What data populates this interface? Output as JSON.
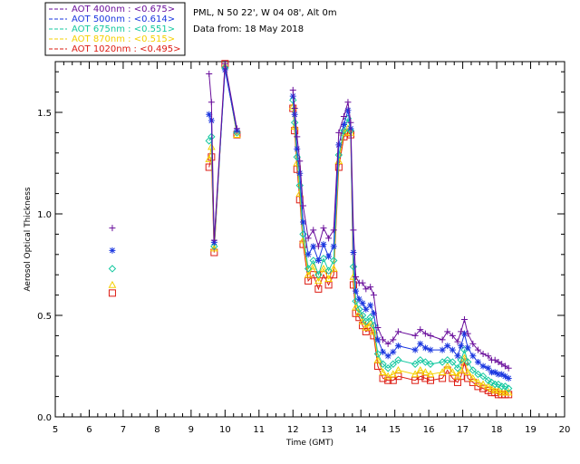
{
  "info": {
    "station": "PML, N 50 22', W 04 08', Alt 0m",
    "date": "Data from: 18 May 2018"
  },
  "chart_data": {
    "type": "line",
    "xlabel": "Time (GMT)",
    "ylabel": "Aerosol Optical Thickness",
    "xlim": [
      5,
      20
    ],
    "ylim": [
      0,
      1.75
    ],
    "xticks": [
      "5",
      "6",
      "7",
      "8",
      "9",
      "10",
      "11",
      "12",
      "13",
      "14",
      "15",
      "16",
      "17",
      "18",
      "19",
      "20"
    ],
    "yticks": [
      "0.0",
      "0.5",
      "1.0",
      "1.5"
    ],
    "legend_position": "top-left (outside plot)",
    "x": [
      6.68,
      9.53,
      9.6,
      9.68,
      10.0,
      10.35,
      12.0,
      12.05,
      12.12,
      12.2,
      12.3,
      12.45,
      12.6,
      12.75,
      12.9,
      13.05,
      13.2,
      13.35,
      13.5,
      13.62,
      13.7,
      13.78,
      13.85,
      13.95,
      14.05,
      14.15,
      14.28,
      14.38,
      14.5,
      14.65,
      14.8,
      14.95,
      15.1,
      15.6,
      15.75,
      15.9,
      16.05,
      16.4,
      16.55,
      16.7,
      16.85,
      16.95,
      17.05,
      17.15,
      17.3,
      17.45,
      17.6,
      17.75,
      17.85,
      17.95,
      18.05,
      18.15,
      18.25,
      18.35
    ],
    "series": [
      {
        "name": "AOT  400nm : <0.675>",
        "color": "#6a0f9c",
        "marker": "plus",
        "values": [
          0.93,
          1.69,
          1.55,
          0.87,
          1.74,
          1.42,
          1.61,
          1.52,
          1.38,
          1.26,
          1.04,
          0.88,
          0.92,
          0.84,
          0.93,
          0.88,
          0.92,
          1.4,
          1.48,
          1.55,
          1.45,
          0.92,
          0.69,
          0.66,
          0.66,
          0.63,
          0.64,
          0.6,
          0.44,
          0.38,
          0.36,
          0.38,
          0.42,
          0.4,
          0.43,
          0.41,
          0.4,
          0.38,
          0.42,
          0.4,
          0.37,
          0.42,
          0.48,
          0.41,
          0.36,
          0.33,
          0.31,
          0.3,
          0.28,
          0.28,
          0.27,
          0.26,
          0.25,
          0.24
        ]
      },
      {
        "name": "AOT  500nm : <0.614>",
        "color": "#1a36e0",
        "marker": "star",
        "values": [
          0.82,
          1.49,
          1.46,
          0.86,
          1.71,
          1.41,
          1.58,
          1.49,
          1.32,
          1.2,
          0.96,
          0.8,
          0.84,
          0.77,
          0.85,
          0.79,
          0.84,
          1.34,
          1.44,
          1.51,
          1.42,
          0.81,
          0.62,
          0.58,
          0.56,
          0.53,
          0.55,
          0.51,
          0.38,
          0.32,
          0.3,
          0.32,
          0.35,
          0.33,
          0.36,
          0.34,
          0.33,
          0.33,
          0.35,
          0.33,
          0.3,
          0.35,
          0.41,
          0.34,
          0.3,
          0.27,
          0.25,
          0.24,
          0.22,
          0.22,
          0.21,
          0.21,
          0.2,
          0.19
        ]
      },
      {
        "name": "AOT  675nm : <0.551>",
        "color": "#14c8a0",
        "marker": "diamond",
        "values": [
          0.73,
          1.36,
          1.38,
          0.84,
          1.72,
          1.4,
          1.56,
          1.45,
          1.28,
          1.14,
          0.9,
          0.73,
          0.77,
          0.7,
          0.78,
          0.72,
          0.77,
          1.29,
          1.41,
          1.47,
          1.41,
          0.74,
          0.57,
          0.53,
          0.5,
          0.47,
          0.49,
          0.45,
          0.31,
          0.26,
          0.24,
          0.26,
          0.28,
          0.26,
          0.28,
          0.27,
          0.26,
          0.27,
          0.28,
          0.27,
          0.24,
          0.28,
          0.33,
          0.27,
          0.23,
          0.21,
          0.2,
          0.18,
          0.17,
          0.16,
          0.16,
          0.15,
          0.15,
          0.14
        ]
      },
      {
        "name": "AOT  870nm : <0.515>",
        "color": "#f5d000",
        "marker": "triangle",
        "values": [
          0.65,
          1.27,
          1.33,
          0.83,
          1.73,
          1.39,
          1.53,
          1.43,
          1.25,
          1.1,
          0.87,
          0.7,
          0.74,
          0.67,
          0.73,
          0.68,
          0.73,
          1.26,
          1.4,
          1.42,
          1.4,
          0.69,
          0.54,
          0.51,
          0.47,
          0.44,
          0.46,
          0.42,
          0.28,
          0.22,
          0.2,
          0.21,
          0.23,
          0.21,
          0.23,
          0.22,
          0.21,
          0.22,
          0.25,
          0.22,
          0.2,
          0.23,
          0.29,
          0.22,
          0.19,
          0.17,
          0.16,
          0.15,
          0.14,
          0.13,
          0.13,
          0.12,
          0.12,
          0.12
        ]
      },
      {
        "name": "AOT 1020nm : <0.495>",
        "color": "#dd1b12",
        "marker": "square",
        "values": [
          0.61,
          1.23,
          1.28,
          0.81,
          1.74,
          1.39,
          1.52,
          1.41,
          1.22,
          1.07,
          0.85,
          0.67,
          0.7,
          0.63,
          0.7,
          0.65,
          0.7,
          1.23,
          1.38,
          1.4,
          1.39,
          0.65,
          0.51,
          0.49,
          0.45,
          0.42,
          0.44,
          0.4,
          0.25,
          0.19,
          0.18,
          0.18,
          0.2,
          0.18,
          0.2,
          0.19,
          0.18,
          0.19,
          0.23,
          0.19,
          0.17,
          0.2,
          0.27,
          0.19,
          0.17,
          0.15,
          0.14,
          0.13,
          0.12,
          0.12,
          0.11,
          0.11,
          0.11,
          0.11
        ]
      }
    ]
  }
}
